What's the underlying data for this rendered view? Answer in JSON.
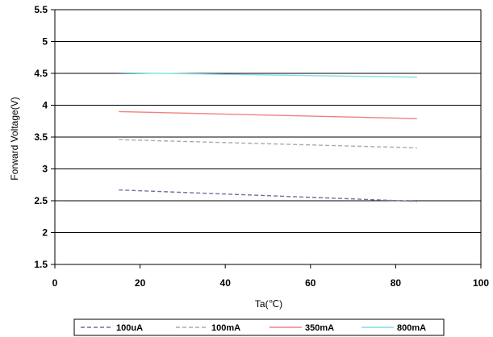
{
  "chart_data": {
    "type": "line",
    "xlabel": "Ta(℃)",
    "ylabel": "Forward Voltage(V)",
    "xlim": [
      0,
      100
    ],
    "ylim": [
      1.5,
      5.5
    ],
    "x_ticks": [
      "0",
      "20",
      "40",
      "60",
      "80",
      "100"
    ],
    "y_ticks": [
      "1.5",
      "2",
      "2.5",
      "3",
      "3.5",
      "4",
      "4.5",
      "5",
      "5.5"
    ],
    "grid": "horizontal",
    "legend_position": "bottom",
    "series": [
      {
        "name": "100uA",
        "color": "#7a6a9c",
        "dash": "dashed",
        "x": [
          15,
          85
        ],
        "y": [
          2.67,
          2.49
        ]
      },
      {
        "name": "100mA",
        "color": "#aaaaaa",
        "dash": "dashed",
        "x": [
          15,
          85
        ],
        "y": [
          3.46,
          3.33
        ]
      },
      {
        "name": "350mA",
        "color": "#f08080",
        "dash": "solid",
        "x": [
          15,
          85
        ],
        "y": [
          3.9,
          3.79
        ]
      },
      {
        "name": "800mA",
        "color": "#80dcec",
        "dash": "solid",
        "x": [
          15,
          85
        ],
        "y": [
          4.51,
          4.44
        ]
      }
    ]
  }
}
